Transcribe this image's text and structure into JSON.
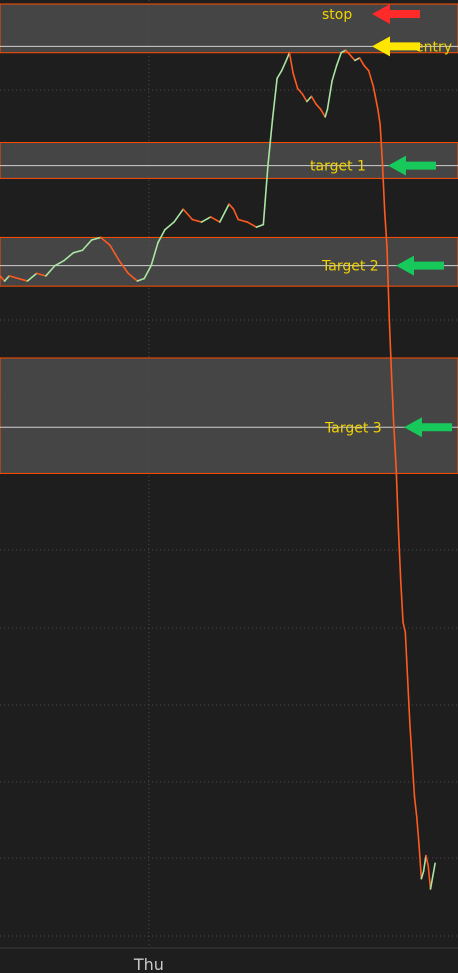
{
  "chart_data": {
    "type": "line",
    "title": "",
    "xlabel": "",
    "ylabel": "",
    "x_ticks": [
      {
        "label": "Thu",
        "t": 0.325
      }
    ],
    "series": [
      {
        "up_color": "#a8e6a1",
        "down_color": "#ff5a1f",
        "points": [
          [
            0.0,
            0.27
          ],
          [
            0.01,
            0.25
          ],
          [
            0.02,
            0.27
          ],
          [
            0.04,
            0.26
          ],
          [
            0.06,
            0.25
          ],
          [
            0.08,
            0.28
          ],
          [
            0.1,
            0.27
          ],
          [
            0.12,
            0.31
          ],
          [
            0.14,
            0.33
          ],
          [
            0.16,
            0.36
          ],
          [
            0.18,
            0.37
          ],
          [
            0.2,
            0.41
          ],
          [
            0.22,
            0.42
          ],
          [
            0.24,
            0.39
          ],
          [
            0.26,
            0.33
          ],
          [
            0.28,
            0.28
          ],
          [
            0.3,
            0.25
          ],
          [
            0.315,
            0.26
          ],
          [
            0.33,
            0.31
          ],
          [
            0.345,
            0.4
          ],
          [
            0.36,
            0.45
          ],
          [
            0.38,
            0.48
          ],
          [
            0.4,
            0.53
          ],
          [
            0.42,
            0.49
          ],
          [
            0.44,
            0.48
          ],
          [
            0.46,
            0.5
          ],
          [
            0.48,
            0.48
          ],
          [
            0.5,
            0.55
          ],
          [
            0.51,
            0.53
          ],
          [
            0.52,
            0.49
          ],
          [
            0.54,
            0.48
          ],
          [
            0.56,
            0.46
          ],
          [
            0.575,
            0.47
          ],
          [
            0.585,
            0.7
          ],
          [
            0.595,
            0.88
          ],
          [
            0.605,
            1.04
          ],
          [
            0.615,
            1.07
          ],
          [
            0.625,
            1.11
          ],
          [
            0.632,
            1.14
          ],
          [
            0.64,
            1.06
          ],
          [
            0.65,
            1.0
          ],
          [
            0.66,
            0.98
          ],
          [
            0.67,
            0.95
          ],
          [
            0.68,
            0.97
          ],
          [
            0.69,
            0.94
          ],
          [
            0.7,
            0.92
          ],
          [
            0.71,
            0.89
          ],
          [
            0.715,
            0.92
          ],
          [
            0.725,
            1.03
          ],
          [
            0.735,
            1.09
          ],
          [
            0.745,
            1.14
          ],
          [
            0.755,
            1.15
          ],
          [
            0.765,
            1.13
          ],
          [
            0.775,
            1.11
          ],
          [
            0.785,
            1.12
          ],
          [
            0.795,
            1.09
          ],
          [
            0.805,
            1.07
          ],
          [
            0.815,
            1.01
          ],
          [
            0.825,
            0.92
          ],
          [
            0.83,
            0.86
          ],
          [
            0.835,
            0.71
          ],
          [
            0.84,
            0.52
          ],
          [
            0.845,
            0.38
          ],
          [
            0.85,
            0.1
          ],
          [
            0.855,
            -0.12
          ],
          [
            0.86,
            -0.32
          ],
          [
            0.865,
            -0.48
          ],
          [
            0.87,
            -0.72
          ],
          [
            0.875,
            -0.92
          ],
          [
            0.88,
            -1.08
          ],
          [
            0.885,
            -1.12
          ],
          [
            0.89,
            -1.3
          ],
          [
            0.895,
            -1.48
          ],
          [
            0.9,
            -1.62
          ],
          [
            0.905,
            -1.76
          ],
          [
            0.91,
            -1.84
          ],
          [
            0.915,
            -1.95
          ],
          [
            0.92,
            -2.08
          ],
          [
            0.925,
            -2.05
          ],
          [
            0.93,
            -1.99
          ],
          [
            0.935,
            -2.03
          ],
          [
            0.94,
            -2.12
          ],
          [
            0.945,
            -2.07
          ],
          [
            0.95,
            -2.02
          ]
        ]
      }
    ],
    "levels": [
      {
        "name": "stop",
        "label": "stop",
        "price": 1.21,
        "band": [
          1.14,
          1.33
        ],
        "label_color": "#f2d300",
        "arrow_color": "#ff2a2a",
        "line": "zone-top"
      },
      {
        "name": "entry",
        "label": "entry",
        "price": 1.165,
        "band": [
          1.14,
          1.33
        ],
        "label_color": "#f2d300",
        "arrow_color": "#ffe600",
        "line": "zone-mid"
      },
      {
        "name": "target1",
        "label": "target 1",
        "price": 0.7,
        "band": [
          0.65,
          0.79
        ],
        "label_color": "#f2d300",
        "arrow_color": "#17c85a"
      },
      {
        "name": "target2",
        "label": "Target 2",
        "price": 0.31,
        "band": [
          0.23,
          0.42
        ],
        "label_color": "#f2d300",
        "arrow_color": "#17c85a"
      },
      {
        "name": "target3",
        "label": "Target 3",
        "price": -0.32,
        "band": [
          -0.5,
          -0.05
        ],
        "label_color": "#f2d300",
        "arrow_color": "#17c85a"
      }
    ],
    "grid": true,
    "y_range": [
      -2.35,
      1.33
    ],
    "colors": {
      "background": "#1e1e1e",
      "zone_fill": "#4c4c4c",
      "zone_border": "#ff4d00",
      "level_line": "#cfcfcf",
      "grid": "#4a4a4a",
      "axis_text": "#c8c8c8"
    }
  }
}
